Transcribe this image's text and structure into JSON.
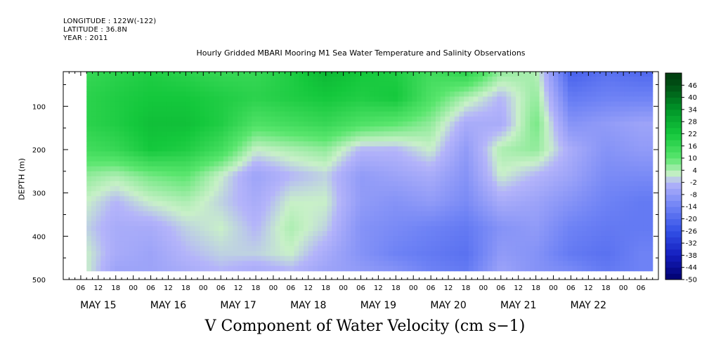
{
  "header": {
    "longitude": "LONGITUDE : 122W(-122)",
    "latitude": "LATITUDE : 36.8N",
    "year": "YEAR : 2011"
  },
  "chart_data": {
    "type": "heatmap",
    "title": "Hourly Gridded MBARI Mooring M1 Sea Water Temperature and Salinity Observations",
    "xlabel": "V Component of Water Velocity (cm s−1)",
    "ylabel": "DEPTH (m)",
    "x_range_hours": [
      -18,
      186
    ],
    "y_range_m": [
      500,
      20
    ],
    "y_ticks": [
      100,
      200,
      300,
      400,
      500
    ],
    "x_hour_tick_labels": [
      "06",
      "12",
      "18",
      "00",
      "06",
      "12",
      "18",
      "00",
      "06",
      "12",
      "18",
      "00",
      "06",
      "12",
      "18",
      "00",
      "06",
      "12",
      "18",
      "00",
      "06",
      "12",
      "18",
      "00",
      "06",
      "12",
      "18",
      "00",
      "06",
      "12",
      "18",
      "00",
      "06"
    ],
    "x_day_labels": [
      {
        "label": "MAY 15",
        "hour": -6
      },
      {
        "label": "MAY 16",
        "hour": 18
      },
      {
        "label": "MAY 17",
        "hour": 42
      },
      {
        "label": "MAY 18",
        "hour": 66
      },
      {
        "label": "MAY 19",
        "hour": 90
      },
      {
        "label": "MAY 20",
        "hour": 114
      },
      {
        "label": "MAY 21",
        "hour": 138
      },
      {
        "label": "MAY 22",
        "hour": 162
      }
    ],
    "colorbar": {
      "levels": [
        46,
        40,
        34,
        28,
        22,
        16,
        10,
        4,
        -2,
        -8,
        -14,
        -20,
        -26,
        -32,
        -38,
        -44,
        -50
      ],
      "range": [
        -50,
        52
      ]
    },
    "data": {
      "x_start_hour": -18,
      "x_step_hours": 12,
      "depth_start_m": 20,
      "depth_step_m": 60,
      "depths_m": [
        20,
        80,
        140,
        200,
        260,
        320,
        380,
        440,
        480
      ],
      "grid_note": "",
      "columns": [
        {
          "hour": -10,
          "v": [
            16,
            18,
            18,
            14,
            6,
            2,
            0,
            2,
            2
          ]
        },
        {
          "hour": 0,
          "v": [
            18,
            20,
            20,
            16,
            4,
            -2,
            -4,
            -4,
            -6
          ]
        },
        {
          "hour": 12,
          "v": [
            20,
            22,
            24,
            22,
            8,
            2,
            -4,
            -6,
            -6
          ]
        },
        {
          "hour": 24,
          "v": [
            18,
            22,
            24,
            20,
            10,
            4,
            0,
            -2,
            -4
          ]
        },
        {
          "hour": 36,
          "v": [
            16,
            20,
            20,
            14,
            2,
            0,
            2,
            0,
            -2
          ]
        },
        {
          "hour": 48,
          "v": [
            16,
            18,
            12,
            2,
            -6,
            -4,
            -2,
            0,
            -4
          ]
        },
        {
          "hour": 60,
          "v": [
            20,
            20,
            14,
            4,
            -2,
            2,
            4,
            2,
            -2
          ]
        },
        {
          "hour": 72,
          "v": [
            26,
            22,
            16,
            6,
            0,
            2,
            0,
            -4,
            -6
          ]
        },
        {
          "hour": 84,
          "v": [
            22,
            20,
            12,
            -2,
            -8,
            -8,
            -10,
            -10,
            -8
          ]
        },
        {
          "hour": 96,
          "v": [
            20,
            22,
            10,
            -2,
            -6,
            -10,
            -12,
            -14,
            -10
          ]
        },
        {
          "hour": 108,
          "v": [
            14,
            12,
            6,
            2,
            -4,
            -8,
            -14,
            -16,
            -14
          ]
        },
        {
          "hour": 120,
          "v": [
            18,
            4,
            -4,
            -8,
            -10,
            -12,
            -16,
            -18,
            -16
          ]
        },
        {
          "hour": 132,
          "v": [
            6,
            -2,
            -4,
            4,
            2,
            -4,
            -10,
            -8,
            -6
          ]
        },
        {
          "hour": 144,
          "v": [
            4,
            6,
            8,
            6,
            -2,
            -6,
            -8,
            -10,
            -10
          ]
        },
        {
          "hour": 156,
          "v": [
            -22,
            -16,
            -10,
            -4,
            -6,
            -10,
            -14,
            -16,
            -12
          ]
        },
        {
          "hour": 168,
          "v": [
            -18,
            -14,
            -8,
            -10,
            -12,
            -14,
            -16,
            -18,
            -16
          ]
        },
        {
          "hour": 180,
          "v": [
            -20,
            -14,
            -6,
            -8,
            -12,
            -16,
            -16,
            -14,
            -14
          ]
        }
      ]
    }
  }
}
